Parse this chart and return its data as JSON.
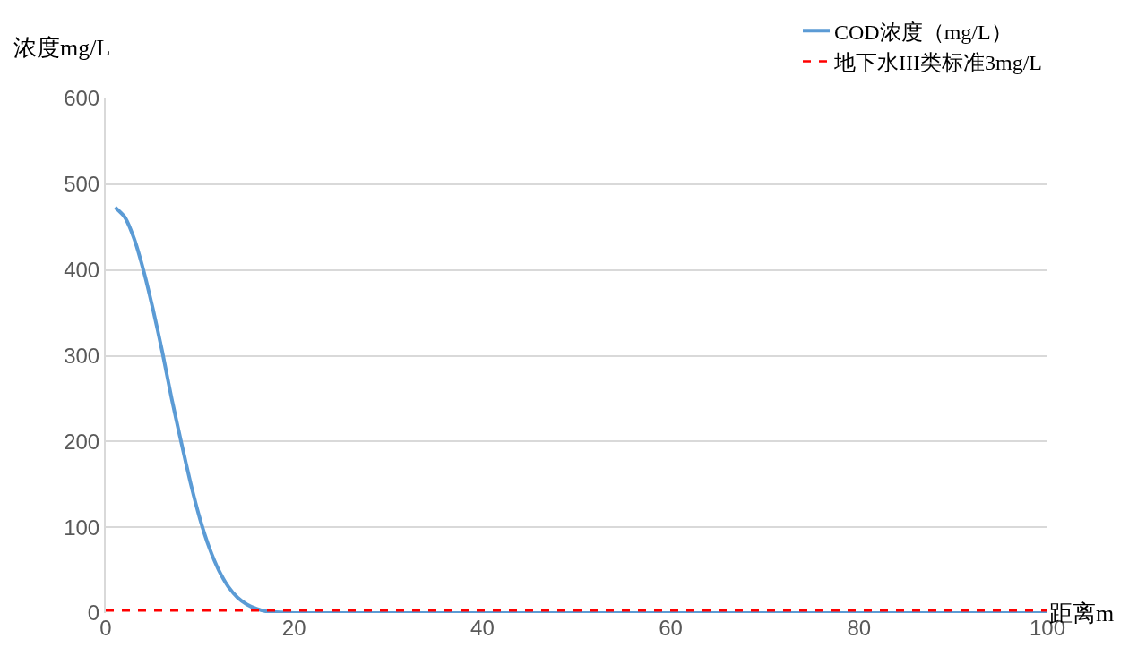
{
  "chart_data": {
    "type": "line",
    "xlabel": "距离m",
    "ylabel": "浓度mg/L",
    "x": [
      1,
      2,
      3,
      4,
      5,
      6,
      7,
      8,
      9,
      10,
      11,
      12,
      13,
      14,
      15,
      16,
      17,
      18,
      20,
      30,
      50,
      100
    ],
    "series": [
      {
        "name": "COD浓度（mg/L）",
        "color": "#5b9bd5",
        "values": [
          473,
          462,
          437,
          400,
          355,
          305,
          250,
          200,
          152,
          110,
          76,
          50,
          31,
          18,
          10,
          5,
          2,
          1,
          0,
          0,
          0,
          0
        ]
      }
    ],
    "ref_lines": [
      {
        "axis": "y",
        "value": 3,
        "label": "地下水III类标准3mg/L",
        "color": "#ff0000",
        "line_style": "dashed"
      }
    ],
    "xlim": [
      0,
      100
    ],
    "xticks": [
      0,
      20,
      40,
      60,
      80,
      100
    ],
    "ylim": [
      0,
      600
    ],
    "yticks": [
      0,
      100,
      200,
      300,
      400,
      500,
      600
    ],
    "grid": "y",
    "legend": "top right",
    "marker": "none",
    "line_style": "solid"
  }
}
